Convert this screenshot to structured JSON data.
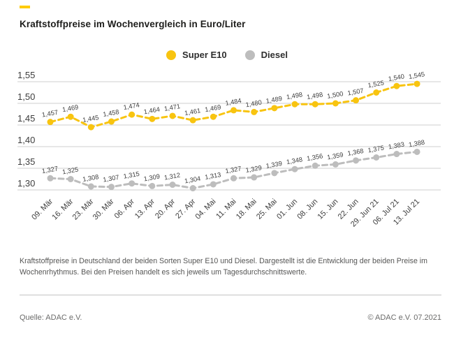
{
  "title": "Kraftstoffpreise im Wochenvergleich in Euro/Liter",
  "brand": {
    "accent_color": "#FFCC00"
  },
  "legend": {
    "items": [
      {
        "label": "Super E10",
        "color": "#F8C410"
      },
      {
        "label": "Diesel",
        "color": "#BDBDBD"
      }
    ]
  },
  "chart_data": {
    "type": "line",
    "title": "Kraftstoffpreise im Wochenvergleich in Euro/Liter",
    "unit": "Euro/Liter",
    "x": [
      "09. Mär",
      "16. Mär",
      "23. Mär",
      "30. Mär",
      "06. Apr",
      "13. Apr",
      "20. Apr",
      "27. Apr",
      "04. Mai",
      "11. Mai",
      "18. Mai",
      "25. Mai",
      "01. Jun",
      "08. Jun",
      "15. Jun",
      "22. Jun",
      "29. Jun 21",
      "06. Jul 21",
      "13. Jul 21"
    ],
    "series": [
      {
        "name": "Super E10",
        "color": "#F8C410",
        "values": [
          1.457,
          1.469,
          1.445,
          1.458,
          1.474,
          1.464,
          1.471,
          1.461,
          1.469,
          1.484,
          1.48,
          1.489,
          1.498,
          1.498,
          1.5,
          1.507,
          1.525,
          1.54,
          1.545
        ]
      },
      {
        "name": "Diesel",
        "color": "#BDBDBD",
        "values": [
          1.327,
          1.325,
          1.308,
          1.307,
          1.315,
          1.309,
          1.312,
          1.304,
          1.313,
          1.327,
          1.329,
          1.339,
          1.348,
          1.356,
          1.359,
          1.368,
          1.375,
          1.383,
          1.388
        ]
      }
    ],
    "ylim": [
      1.3,
      1.55
    ],
    "yticks": [
      1.55,
      1.5,
      1.45,
      1.4,
      1.35,
      1.3
    ],
    "grid": "horizontal",
    "grid_color": "#CFCFCF",
    "label_color": "#3d3d3d",
    "legend_position": "top-center",
    "line_style": "dashed",
    "marker": "circle",
    "value_labels": true,
    "decimal_separator": ","
  },
  "description": "Kraftstoffpreise in Deutschland der beiden Sorten Super E10 und Diesel. Dargestellt ist die Entwicklung der beiden Preise im Wochenrhythmus. Bei den Preisen handelt es sich jeweils um Tagesdurchschnittswerte.",
  "footer": {
    "source": "Quelle: ADAC e.V.",
    "copyright": "© ADAC e.V. 07.2021"
  }
}
